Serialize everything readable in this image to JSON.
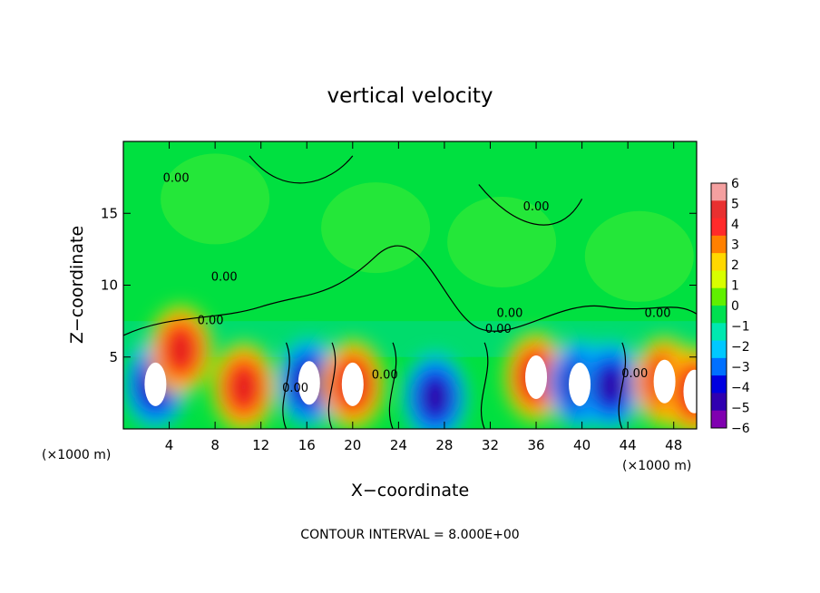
{
  "chart_data": {
    "type": "heatmap",
    "title": "vertical velocity",
    "xlabel": "X−coordinate",
    "ylabel": "Z−coordinate",
    "x_unit_left": "(×1000 m)",
    "x_unit_right": "(×1000 m)",
    "xlim": [
      0,
      50
    ],
    "ylim": [
      0,
      20
    ],
    "x_ticks": [
      4,
      8,
      12,
      16,
      20,
      24,
      28,
      32,
      36,
      40,
      44,
      48
    ],
    "y_ticks": [
      5,
      10,
      15
    ],
    "colorbar": {
      "range": [
        -6,
        6
      ],
      "labels": [
        "6",
        "5",
        "4",
        "3",
        "2",
        "1",
        "0",
        "−1",
        "−2",
        "−3",
        "−4",
        "−5",
        "−6"
      ],
      "colors": [
        "#f4a0a0",
        "#e83030",
        "#ff2a2a",
        "#ff8000",
        "#ffd800",
        "#d8ff00",
        "#60f000",
        "#00e050",
        "#00e8b0",
        "#00c8ff",
        "#0070ff",
        "#0000e0",
        "#3000b0",
        "#8000b0"
      ]
    },
    "contour_label": "0.00",
    "contour_interval_text": "CONTOUR INTERVAL = 8.000E+00",
    "cells": [
      {
        "x": 2.8,
        "z": 3.1,
        "w": -12
      },
      {
        "x": 5.0,
        "z": 5.5,
        "w": 7
      },
      {
        "x": 10.5,
        "z": 2.9,
        "w": 8
      },
      {
        "x": 16.2,
        "z": 3.2,
        "w": -11
      },
      {
        "x": 20.0,
        "z": 3.1,
        "w": 11
      },
      {
        "x": 27.2,
        "z": 2.2,
        "w": -5
      },
      {
        "x": 36.0,
        "z": 3.6,
        "w": 10
      },
      {
        "x": 39.8,
        "z": 3.1,
        "w": -11
      },
      {
        "x": 42.5,
        "z": 3.0,
        "w": -6
      },
      {
        "x": 47.2,
        "z": 3.3,
        "w": 11
      },
      {
        "x": 49.8,
        "z": 2.6,
        "w": 9
      }
    ]
  }
}
